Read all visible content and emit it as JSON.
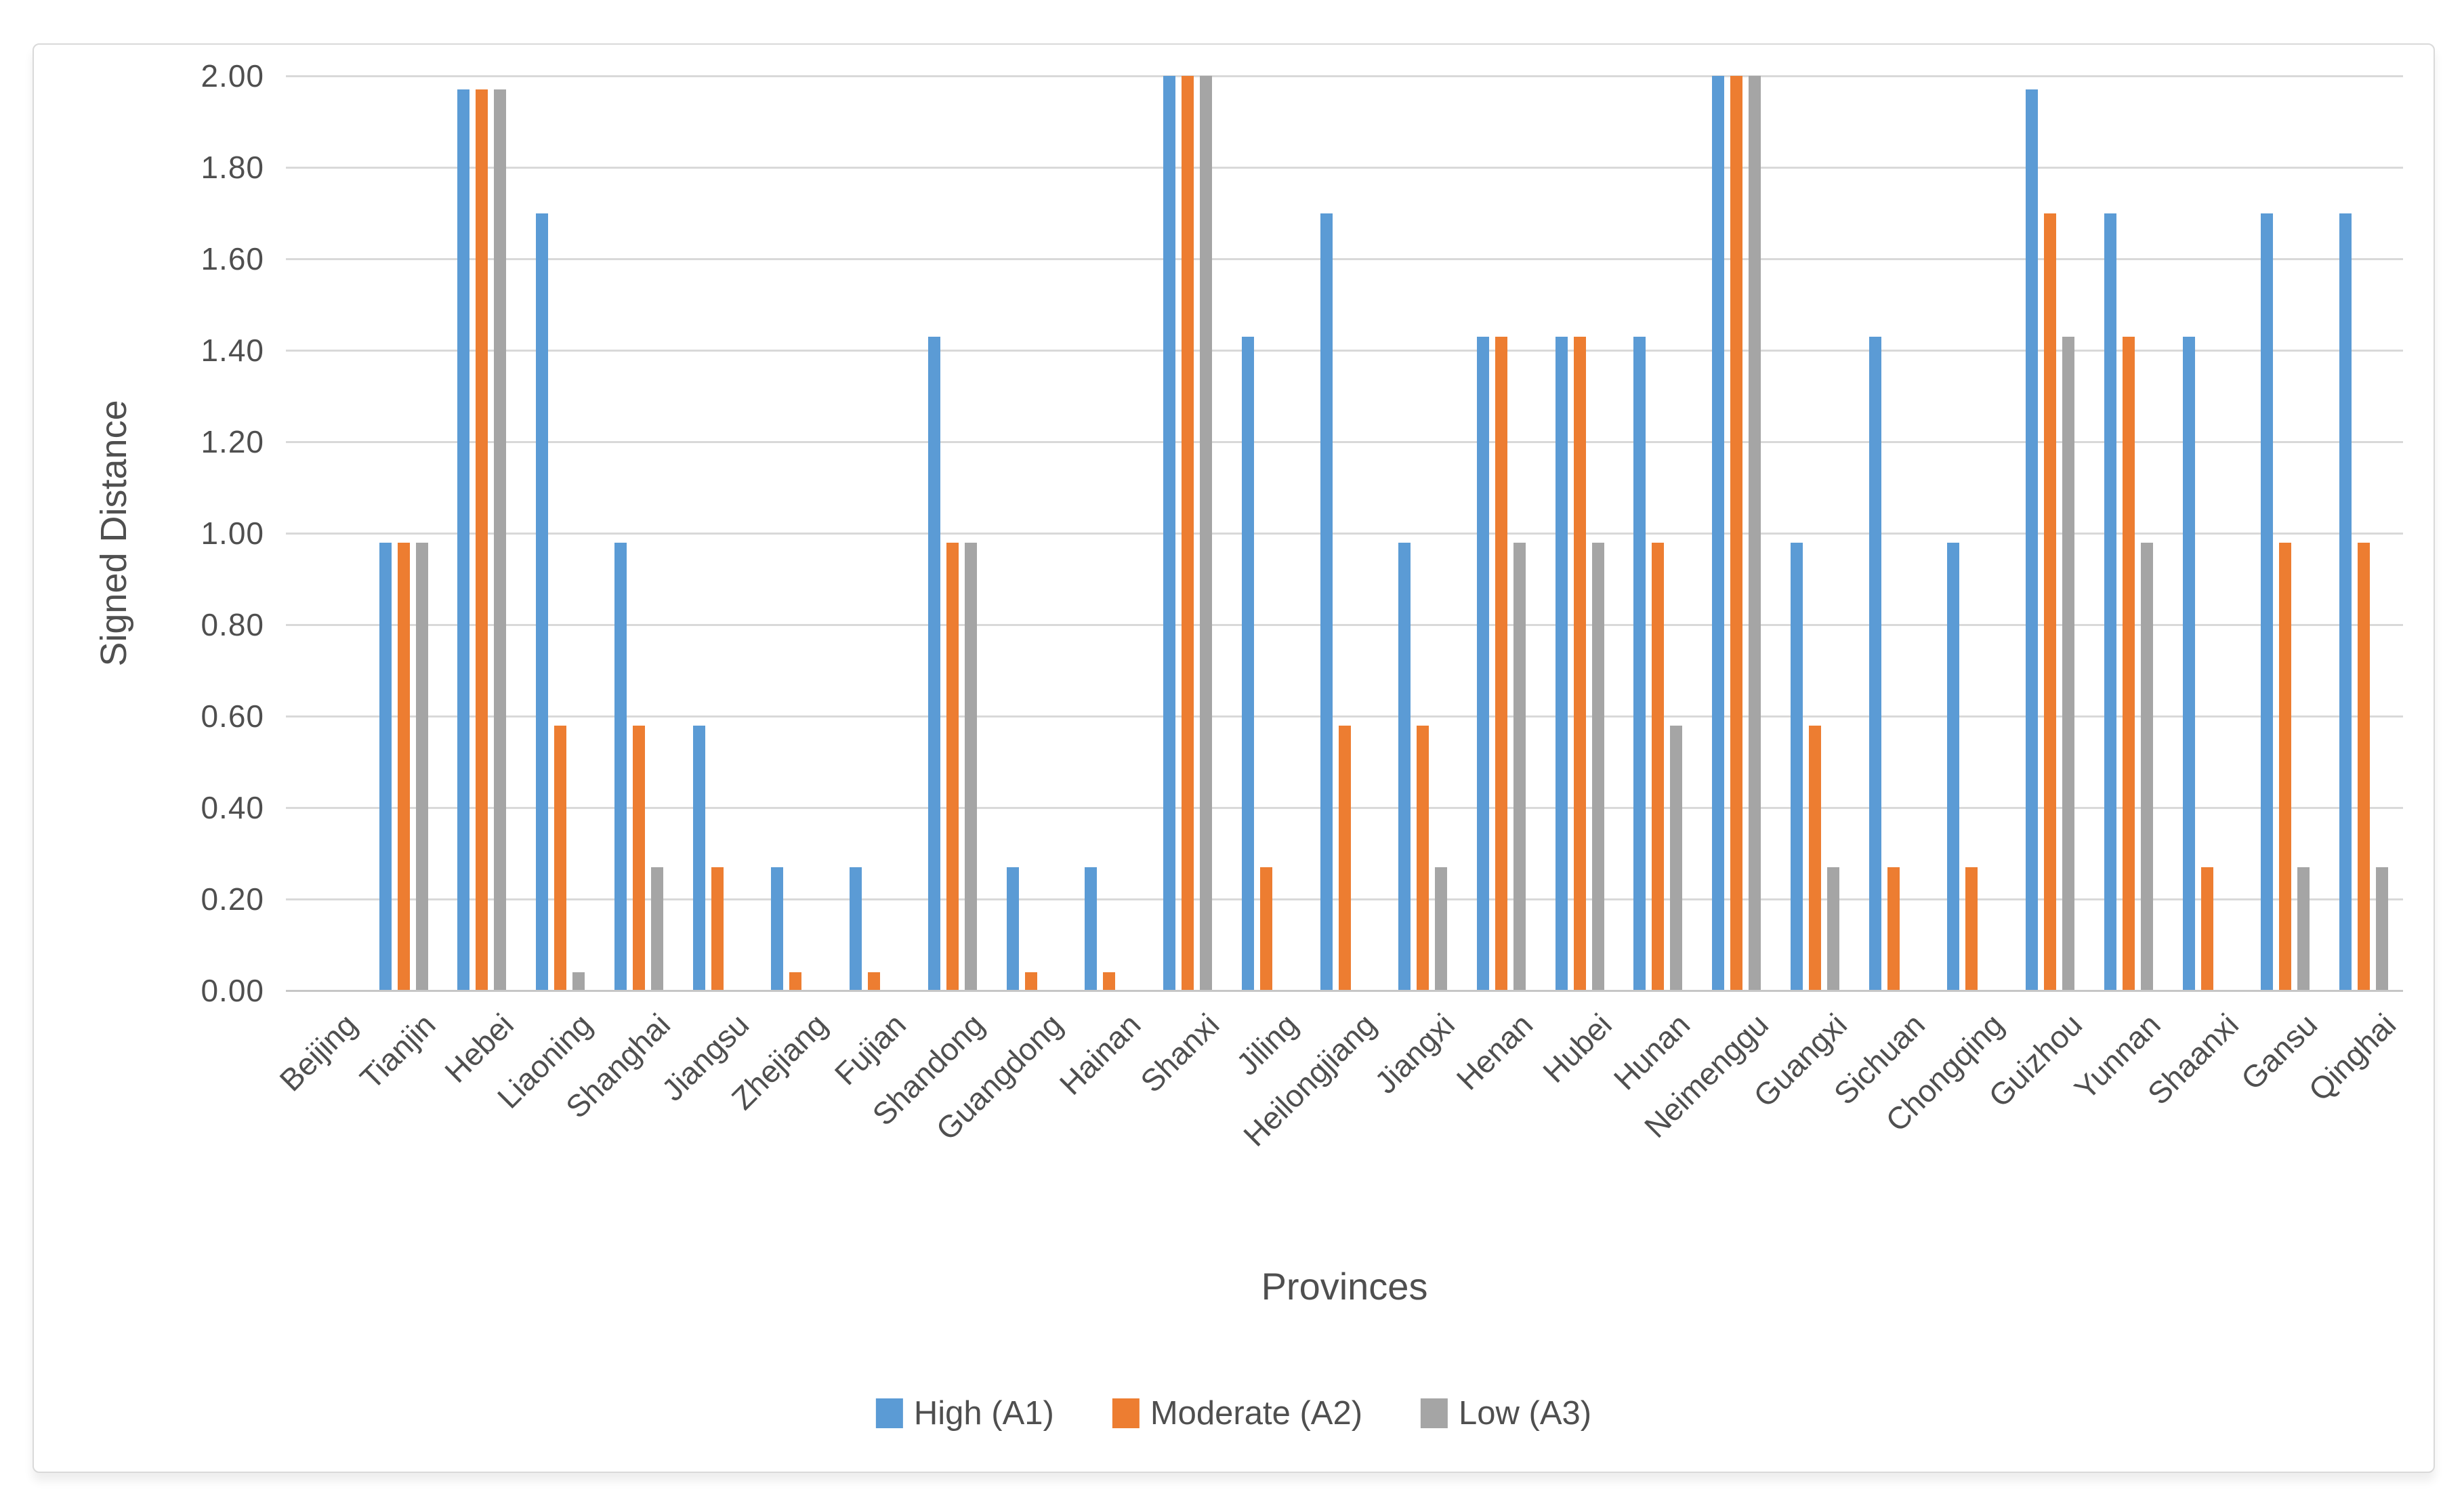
{
  "chart_data": {
    "type": "bar",
    "title": "",
    "xlabel": "Provinces",
    "ylabel": "Signed Distance",
    "ylim": [
      0,
      2.0
    ],
    "y_tick_step": 0.2,
    "y_ticks": [
      "0.00",
      "0.20",
      "0.40",
      "0.60",
      "0.80",
      "1.00",
      "1.20",
      "1.40",
      "1.60",
      "1.80",
      "2.00"
    ],
    "grid": true,
    "legend_position": "bottom",
    "colors": {
      "gridline": "#d9d9d9",
      "axis_line": "#c6c6c6",
      "text": "#4f4f4f"
    },
    "categories": [
      "Beijing",
      "Tianjin",
      "Hebei",
      "Liaoning",
      "Shanghai",
      "Jiangsu",
      "Zhejiang",
      "Fujian",
      "Shandong",
      "Guangdong",
      "Hainan",
      "Shanxi",
      "Jiling",
      "Heilongjiang",
      "Jiangxi",
      "Henan",
      "Hubei",
      "Hunan",
      "Neimenggu",
      "Guangxi",
      "Sichuan",
      "Chongqing",
      "Guizhou",
      "Yunnan",
      "Shaanxi",
      "Gansu",
      "Qinghai"
    ],
    "series": [
      {
        "name": "High (A1)",
        "color": "#5b9bd5",
        "values": [
          0,
          0.98,
          1.97,
          1.7,
          0.98,
          0.58,
          0.27,
          0.27,
          1.43,
          0.27,
          0.27,
          2.0,
          1.43,
          1.7,
          0.98,
          1.43,
          1.43,
          1.43,
          2.0,
          0.98,
          1.43,
          0.98,
          1.97,
          1.7,
          1.43,
          1.7,
          1.7
        ]
      },
      {
        "name": "Moderate (A2)",
        "color": "#ed7d31",
        "values": [
          0,
          0.98,
          1.97,
          0.58,
          0.58,
          0.27,
          0.04,
          0.04,
          0.98,
          0.04,
          0.04,
          2.0,
          0.27,
          0.58,
          0.58,
          1.43,
          1.43,
          0.98,
          2.0,
          0.58,
          0.27,
          0.27,
          1.7,
          1.43,
          0.27,
          0.98,
          0.98
        ]
      },
      {
        "name": "Low (A3)",
        "color": "#a5a5a5",
        "values": [
          0,
          0.98,
          1.97,
          0.04,
          0.27,
          0,
          0,
          0,
          0.98,
          0,
          0,
          2.0,
          0,
          0,
          0.27,
          0.98,
          0.98,
          0.58,
          2.0,
          0.27,
          0,
          0,
          1.43,
          0.98,
          0,
          0.27,
          0.27
        ]
      }
    ]
  }
}
